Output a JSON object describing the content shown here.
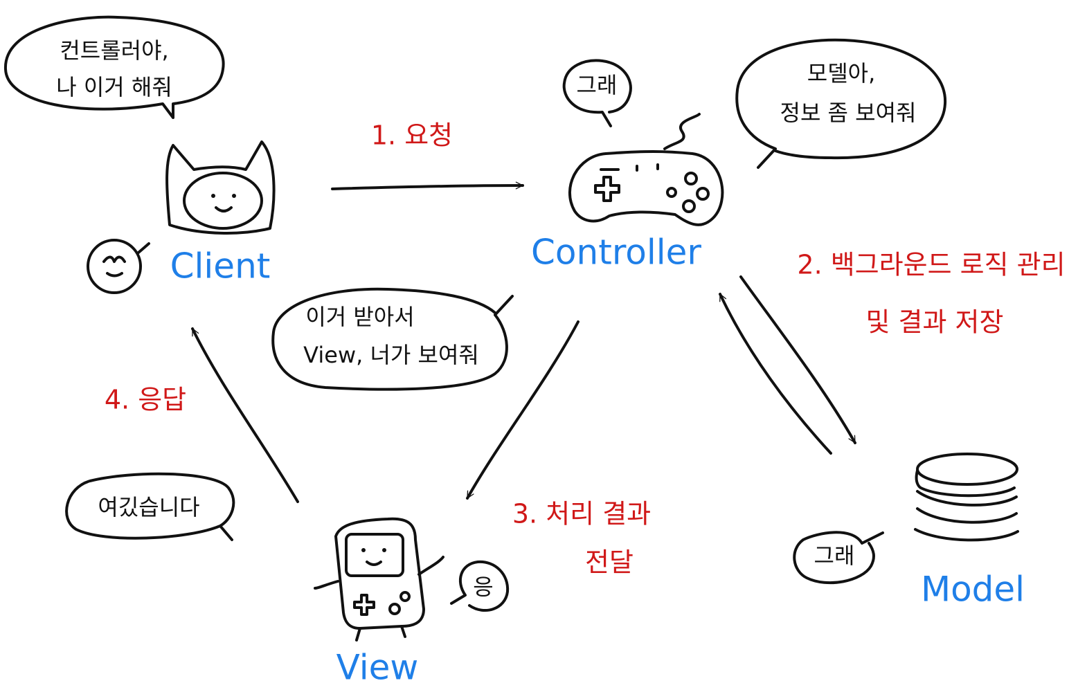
{
  "nodes": [
    {
      "label": "Client"
    },
    {
      "label": "Controller"
    },
    {
      "label": "Model"
    },
    {
      "label": "View"
    }
  ],
  "steps": [
    {
      "lines": [
        "1. 요청"
      ]
    },
    {
      "lines": [
        "2. 백그라운드 로직 관리",
        "및 결과 저장"
      ]
    },
    {
      "lines": [
        "3. 처리 결과",
        "전달"
      ]
    },
    {
      "lines": [
        "4. 응답"
      ]
    }
  ],
  "bubbles": [
    {
      "lines": [
        "컨트롤러야,",
        "나 이거 해줘"
      ]
    },
    {
      "lines": [
        "그래"
      ]
    },
    {
      "lines": [
        "모델아,",
        "정보 좀 보여줘"
      ]
    },
    {
      "lines": [
        "이거 받아서",
        "View, 너가 보여줘"
      ]
    },
    {
      "lines": [
        "그래"
      ]
    },
    {
      "lines": [
        "응"
      ]
    },
    {
      "lines": [
        "여깄습니다"
      ]
    }
  ]
}
